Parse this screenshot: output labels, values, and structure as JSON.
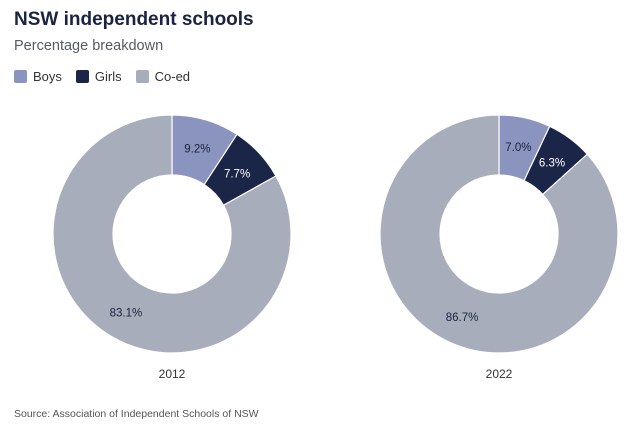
{
  "title": "NSW independent schools",
  "subtitle": "Percentage breakdown",
  "legend": [
    {
      "label": "Boys",
      "color": "#8b94bf"
    },
    {
      "label": "Girls",
      "color": "#1b2548"
    },
    {
      "label": "Co-ed",
      "color": "#a8adbc"
    }
  ],
  "source": "Source: Association of Independent Schools of NSW",
  "chart_data": [
    {
      "type": "pie",
      "title": "2012",
      "categories": [
        "Boys",
        "Girls",
        "Co-ed"
      ],
      "values": [
        9.2,
        7.7,
        83.1
      ],
      "labels": [
        "9.2%",
        "7.7%",
        "83.1%"
      ],
      "colors": [
        "#8b94bf",
        "#1b2548",
        "#a8adbc"
      ]
    },
    {
      "type": "pie",
      "title": "2022",
      "categories": [
        "Boys",
        "Girls",
        "Co-ed"
      ],
      "values": [
        7.0,
        6.3,
        86.7
      ],
      "labels": [
        "7.0%",
        "6.3%",
        "86.7%"
      ],
      "colors": [
        "#8b94bf",
        "#1b2548",
        "#a8adbc"
      ]
    }
  ]
}
